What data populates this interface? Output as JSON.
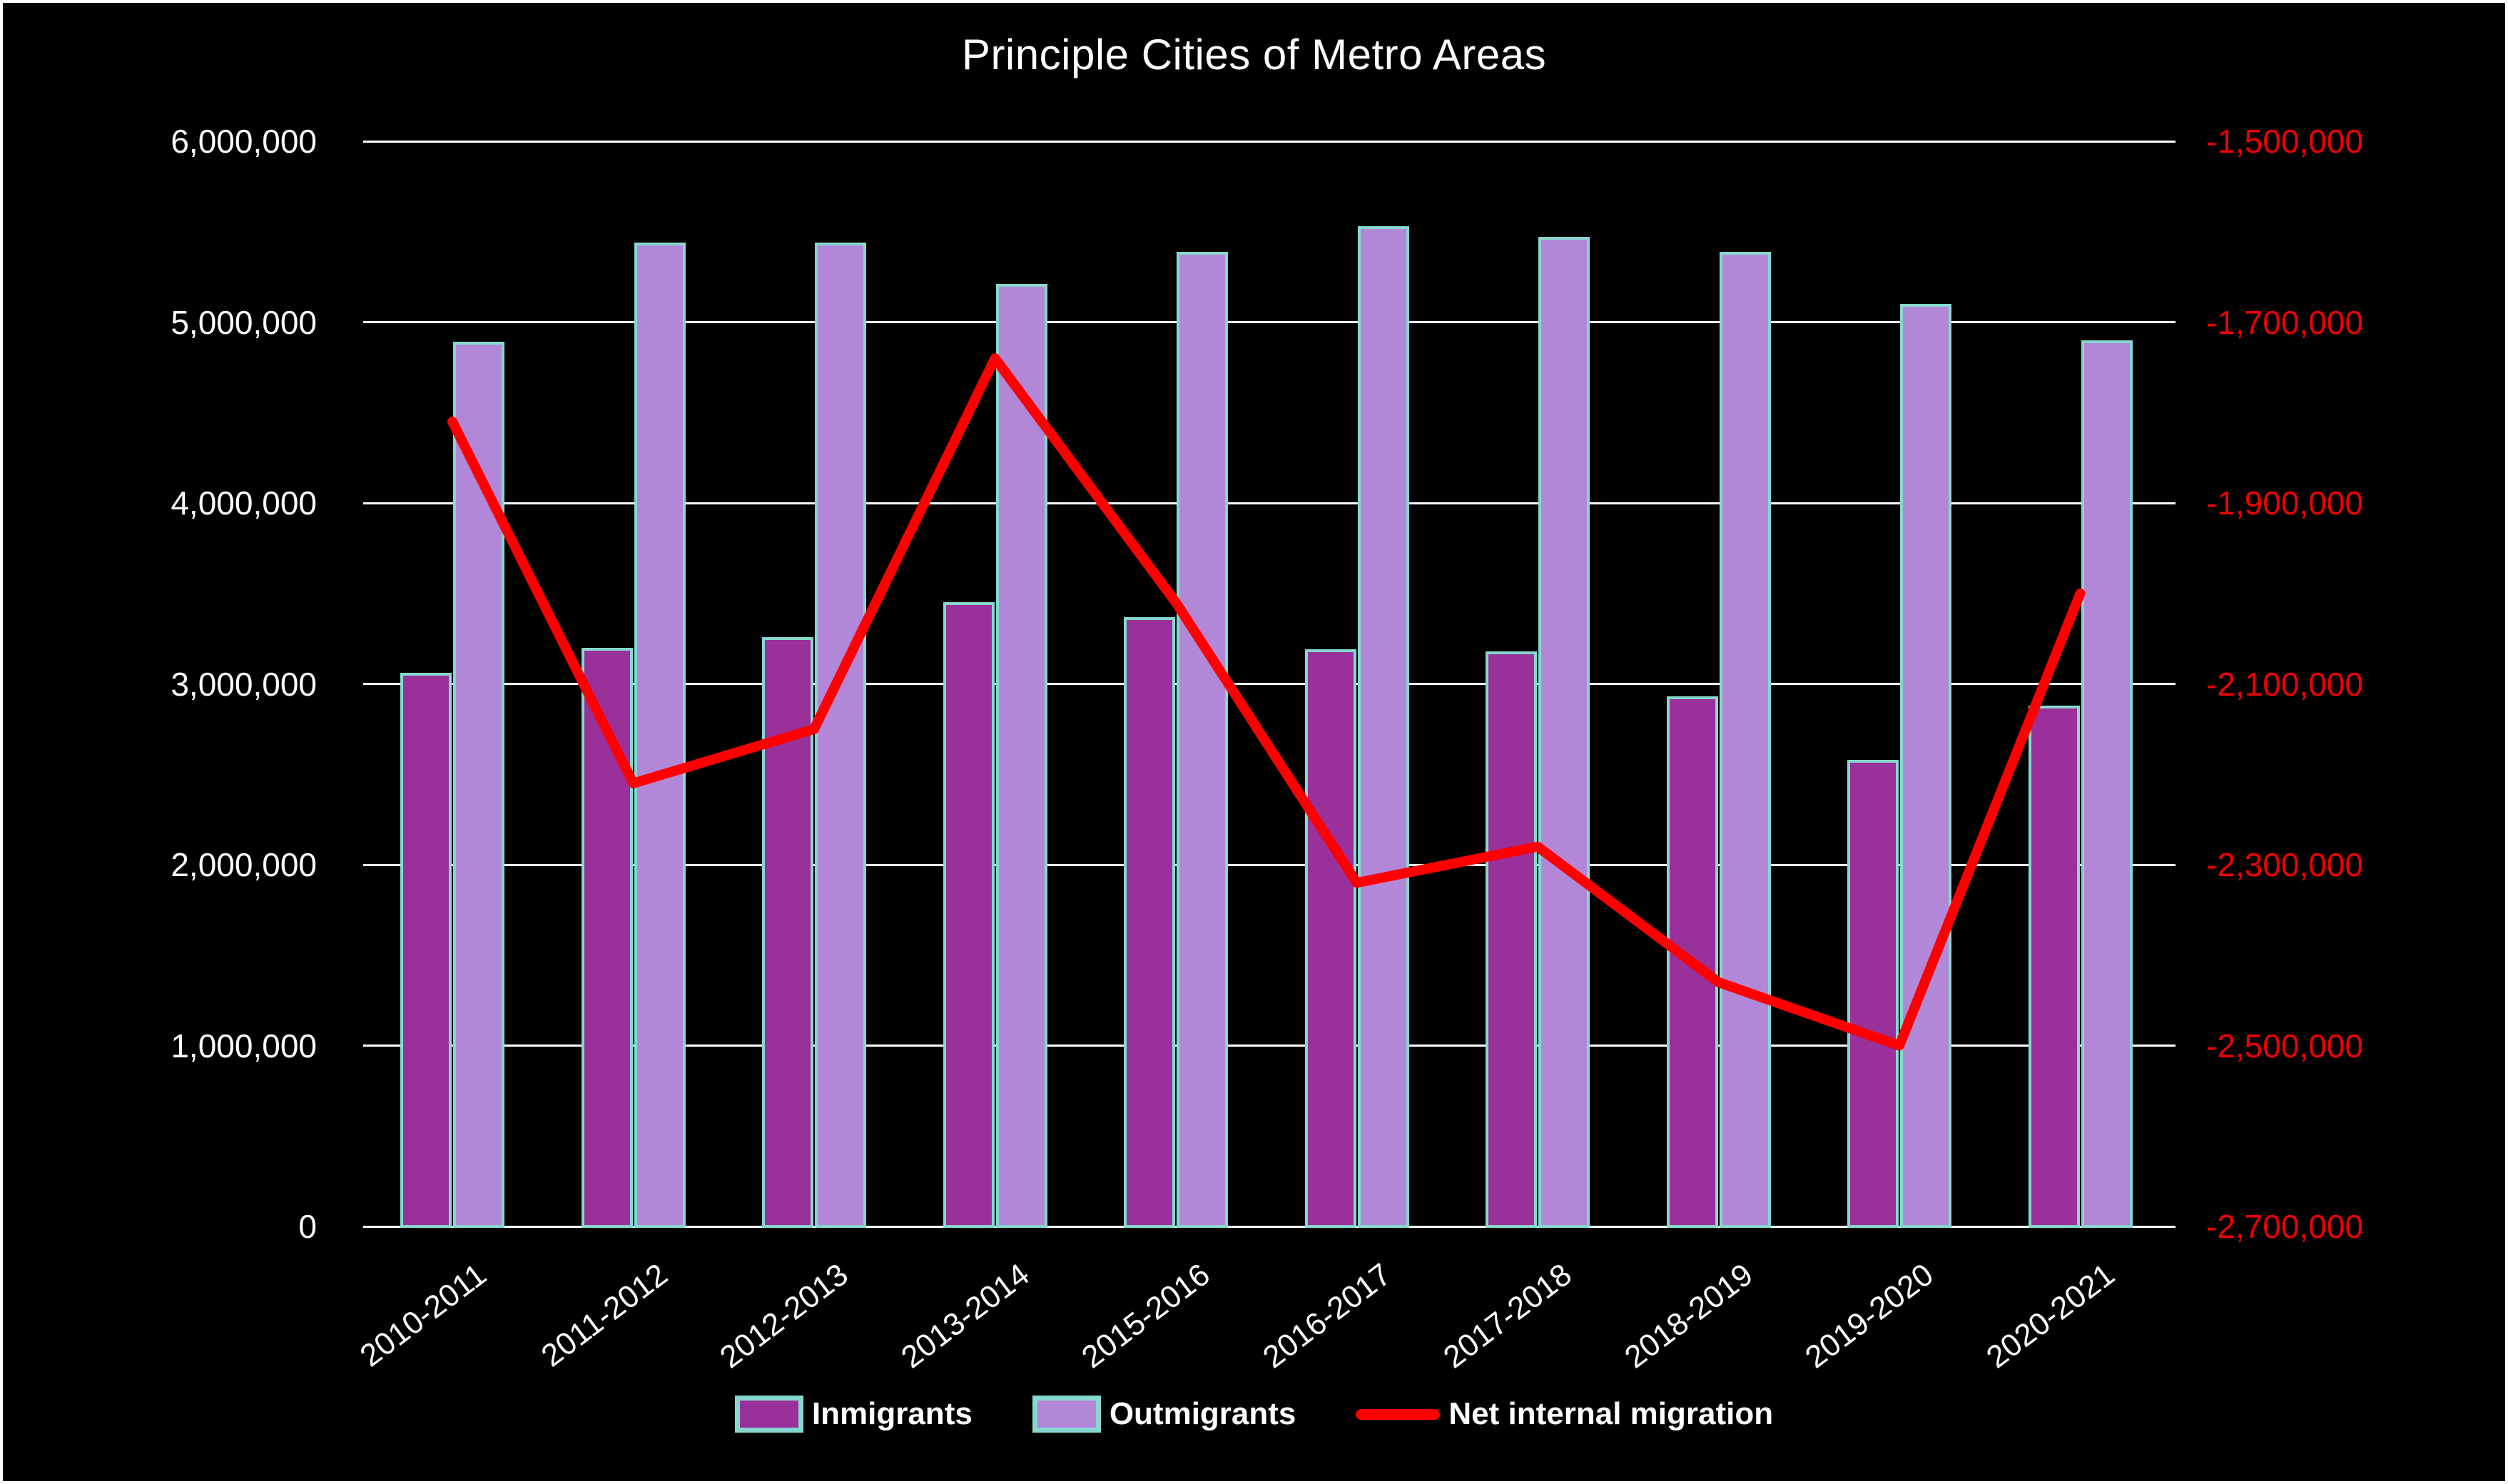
{
  "chart_data": {
    "type": "combo-bar-line",
    "title": "Principle Cities of Metro Areas",
    "categories": [
      "2010-2011",
      "2011-2012",
      "2012-2013",
      "2013-2014",
      "2015-2016",
      "2016-2017",
      "2017-2018",
      "2018-2019",
      "2019-2020",
      "2020-2021"
    ],
    "series": [
      {
        "name": "Inmigrants",
        "type": "bar",
        "axis": "left",
        "color": "#9A309A",
        "values": [
          3060000,
          3200000,
          3260000,
          3450000,
          3370000,
          3190000,
          3180000,
          2930000,
          2580000,
          2880000
        ]
      },
      {
        "name": "Outmigrants",
        "type": "bar",
        "axis": "left",
        "color": "#B287D8",
        "values": [
          4890000,
          5440000,
          5440000,
          5210000,
          5390000,
          5530000,
          5470000,
          5390000,
          5100000,
          4900000
        ]
      },
      {
        "name": "Net internal migration",
        "type": "line",
        "axis": "right",
        "color": "#FF0000",
        "values": [
          -1810000,
          -2210000,
          -2150000,
          -1740000,
          -2010000,
          -2320000,
          -2280000,
          -2430000,
          -2500000,
          -2000000
        ]
      }
    ],
    "left_axis": {
      "min": 0,
      "max": 6000000,
      "step": 1000000,
      "color": "#FFFFFF",
      "tick_labels": [
        "6,000,000",
        "5,000,000",
        "4,000,000",
        "3,000,000",
        "2,000,000",
        "1,000,000",
        "0"
      ]
    },
    "right_axis": {
      "min": -2700000,
      "max": -1500000,
      "step": 200000,
      "color": "#EE0000",
      "tick_labels": [
        "-1,500,000",
        "-1,700,000",
        "-1,900,000",
        "-2,100,000",
        "-2,300,000",
        "-2,500,000",
        "-2,700,000"
      ]
    },
    "bar_outline_color": "#87D7CF",
    "gridline_color": "#FFFFFF",
    "background_color": "#000000",
    "grid": true,
    "legend_position": "bottom"
  }
}
